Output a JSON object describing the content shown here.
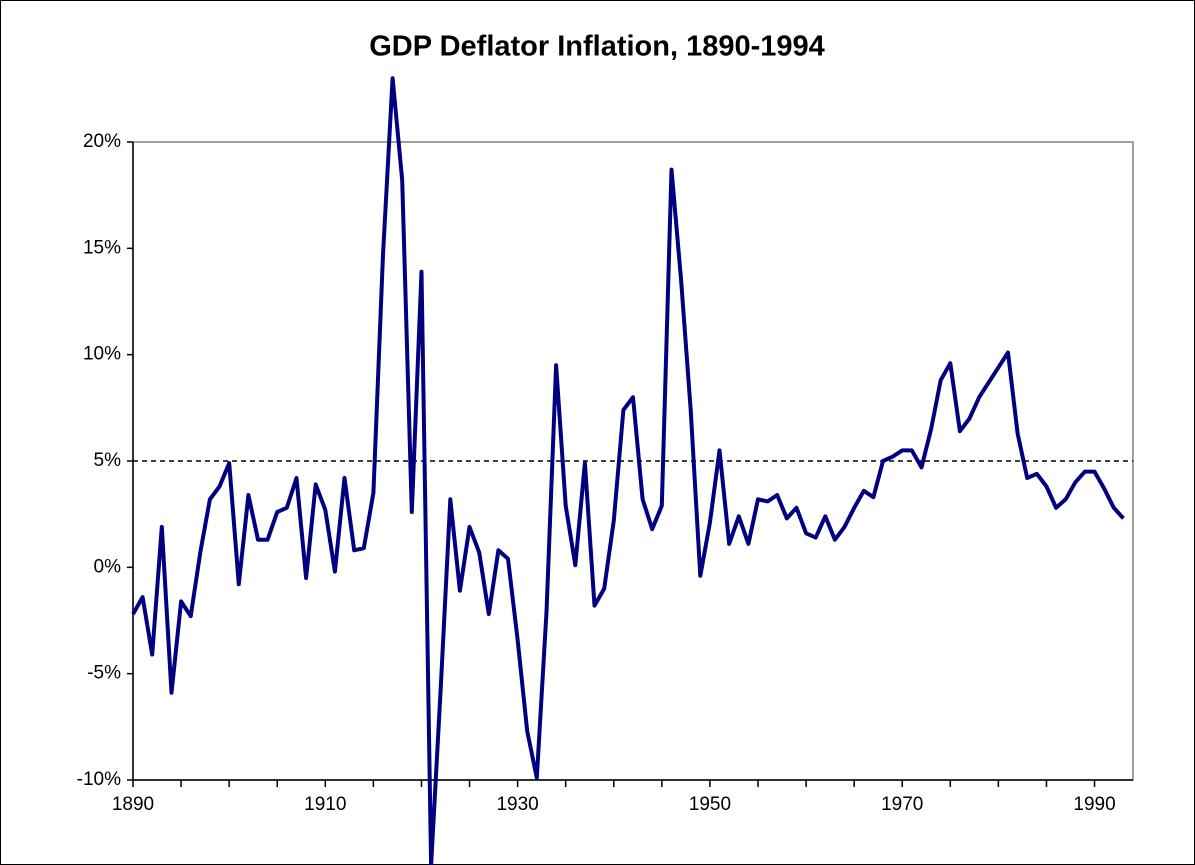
{
  "chart_data": {
    "type": "line",
    "title": "GDP Deflator Inflation, 1890-1994",
    "x": [
      1890,
      1891,
      1892,
      1893,
      1894,
      1895,
      1896,
      1897,
      1898,
      1899,
      1900,
      1901,
      1902,
      1903,
      1904,
      1905,
      1906,
      1907,
      1908,
      1909,
      1910,
      1911,
      1912,
      1913,
      1914,
      1915,
      1916,
      1917,
      1918,
      1919,
      1920,
      1921,
      1922,
      1923,
      1924,
      1925,
      1926,
      1927,
      1928,
      1929,
      1930,
      1931,
      1932,
      1933,
      1934,
      1935,
      1936,
      1937,
      1938,
      1939,
      1940,
      1941,
      1942,
      1943,
      1944,
      1945,
      1946,
      1947,
      1948,
      1949,
      1950,
      1951,
      1952,
      1953,
      1954,
      1955,
      1956,
      1957,
      1958,
      1959,
      1960,
      1961,
      1962,
      1963,
      1964,
      1965,
      1966,
      1967,
      1968,
      1969,
      1970,
      1971,
      1972,
      1973,
      1974,
      1975,
      1976,
      1977,
      1978,
      1979,
      1980,
      1981,
      1982,
      1983,
      1984,
      1985,
      1986,
      1987,
      1988,
      1989,
      1990,
      1991,
      1992,
      1993
    ],
    "series": [
      {
        "name": "GDP Deflator Inflation",
        "color": "#000080",
        "values": [
          -2.2,
          -1.4,
          -4.1,
          1.9,
          -5.9,
          -1.6,
          -2.3,
          0.7,
          3.2,
          3.8,
          4.9,
          -0.8,
          3.4,
          1.3,
          1.3,
          2.6,
          2.8,
          4.2,
          -0.5,
          3.9,
          2.7,
          -0.2,
          4.2,
          0.8,
          0.9,
          3.5,
          14.7,
          23.0,
          18.2,
          2.6,
          13.9,
          -14.0,
          -5.7,
          3.2,
          -1.1,
          1.9,
          0.7,
          -2.2,
          0.8,
          0.4,
          -3.4,
          -7.7,
          -9.9,
          -2.1,
          9.5,
          2.9,
          0.1,
          4.9,
          -1.8,
          -1.0,
          2.2,
          7.4,
          8.0,
          3.2,
          1.8,
          2.9,
          18.7,
          13.5,
          7.4,
          -0.4,
          2.1,
          5.5,
          1.1,
          2.4,
          1.1,
          3.2,
          3.1,
          3.4,
          2.3,
          2.8,
          1.6,
          1.4,
          2.4,
          1.3,
          1.9,
          2.8,
          3.6,
          3.3,
          5.0,
          5.2,
          5.5,
          5.5,
          4.7,
          6.5,
          8.8,
          9.6,
          6.4,
          7.0,
          8.0,
          8.7,
          9.4,
          10.1,
          6.3,
          4.2,
          4.4,
          3.8,
          2.8,
          3.2,
          4.0,
          4.5,
          4.5,
          3.7,
          2.8,
          2.3
        ]
      }
    ],
    "reference_line": 5,
    "xlim": [
      1890,
      1994
    ],
    "xticks": [
      1890,
      {
        "value": 1895,
        "label": null
      },
      {
        "value": 1900,
        "label": null
      },
      {
        "value": 1905,
        "label": null
      },
      1910,
      {
        "value": 1915,
        "label": null
      },
      {
        "value": 1920,
        "label": null
      },
      {
        "value": 1925,
        "label": null
      },
      1930,
      {
        "value": 1935,
        "label": null
      },
      {
        "value": 1940,
        "label": null
      },
      {
        "value": 1945,
        "label": null
      },
      1950,
      {
        "value": 1955,
        "label": null
      },
      {
        "value": 1960,
        "label": null
      },
      {
        "value": 1965,
        "label": null
      },
      1970,
      {
        "value": 1975,
        "label": null
      },
      {
        "value": 1980,
        "label": null
      },
      {
        "value": 1985,
        "label": null
      },
      1990
    ],
    "ylim": [
      -10,
      20
    ],
    "yticks": [
      {
        "value": -10,
        "label": "-10%"
      },
      {
        "value": -5,
        "label": "-5%"
      },
      {
        "value": 0,
        "label": "0%"
      },
      {
        "value": 5,
        "label": "5%"
      },
      {
        "value": 10,
        "label": "10%"
      },
      {
        "value": 15,
        "label": "15%"
      },
      {
        "value": 20,
        "label": "20%"
      }
    ],
    "grid": false
  }
}
